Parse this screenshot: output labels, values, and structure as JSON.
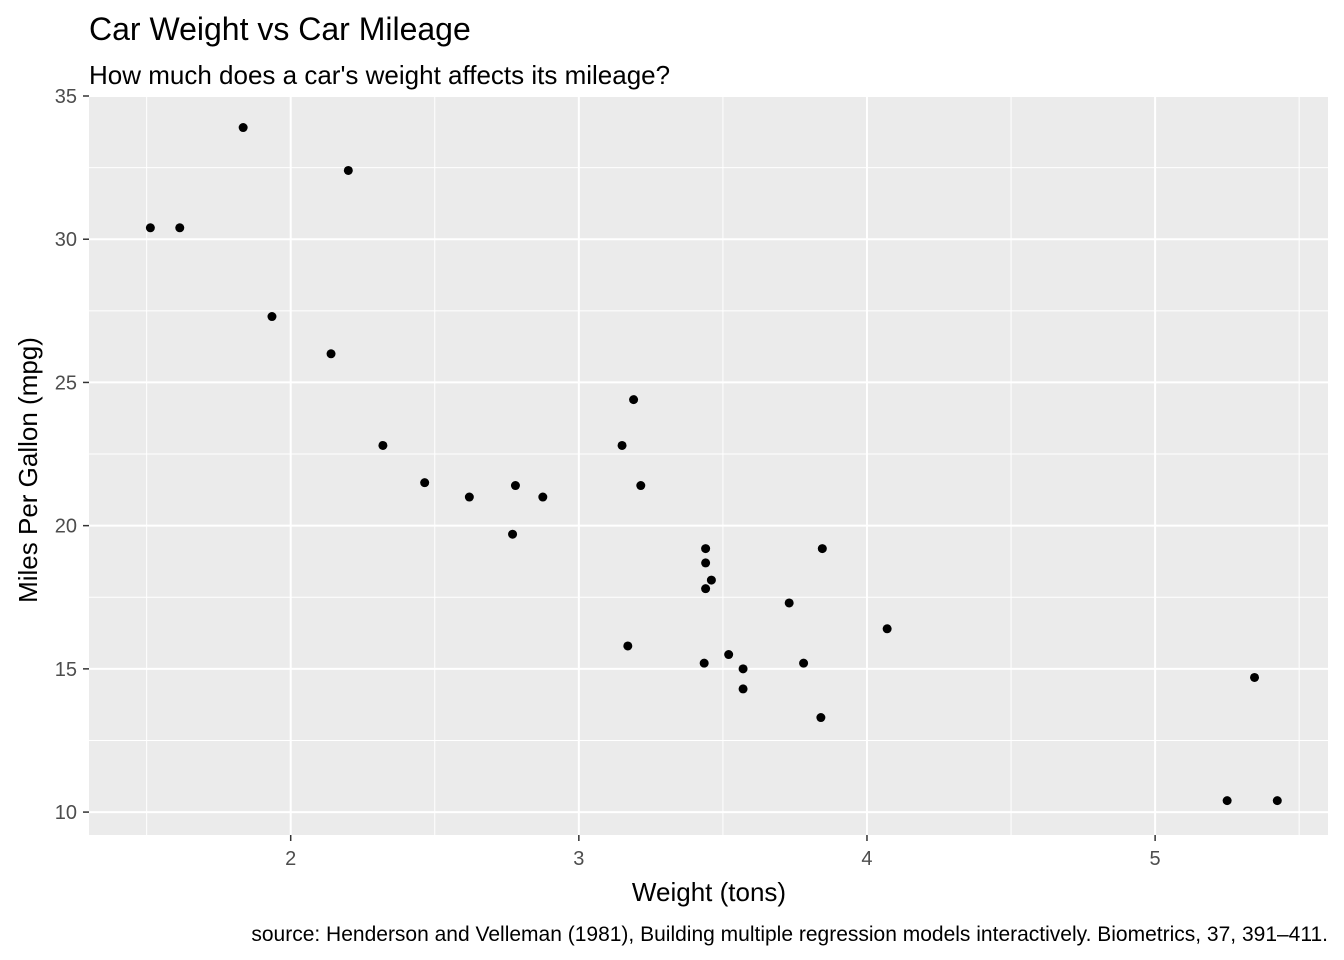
{
  "chart_data": {
    "type": "scatter",
    "title": "Car Weight vs Car Mileage",
    "subtitle": "How much does a car's weight affects its mileage?",
    "xlabel": "Weight (tons)",
    "ylabel": "Miles Per Gallon (mpg)",
    "caption": "source: Henderson and Velleman (1981), Building multiple regression models interactively. Biometrics, 37, 391–411.",
    "xlim": [
      1.3,
      5.6
    ],
    "ylim": [
      9.2,
      35.0
    ],
    "x_ticks": [
      2,
      3,
      4,
      5
    ],
    "x_tick_labels": [
      "2",
      "3",
      "4",
      "5"
    ],
    "y_ticks": [
      10,
      15,
      20,
      25,
      30,
      35
    ],
    "y_tick_labels": [
      "10",
      "15",
      "20",
      "25",
      "30",
      "35"
    ],
    "grid": true,
    "background": "#ebebeb",
    "grid_color": "#ffffff",
    "point_color": "#000000",
    "points": [
      {
        "x": 2.62,
        "y": 21.0
      },
      {
        "x": 2.875,
        "y": 21.0
      },
      {
        "x": 2.32,
        "y": 22.8
      },
      {
        "x": 3.215,
        "y": 21.4
      },
      {
        "x": 3.44,
        "y": 18.7
      },
      {
        "x": 3.46,
        "y": 18.1
      },
      {
        "x": 3.57,
        "y": 14.3
      },
      {
        "x": 3.19,
        "y": 24.4
      },
      {
        "x": 3.15,
        "y": 22.8
      },
      {
        "x": 3.44,
        "y": 19.2
      },
      {
        "x": 3.44,
        "y": 17.8
      },
      {
        "x": 4.07,
        "y": 16.4
      },
      {
        "x": 3.73,
        "y": 17.3
      },
      {
        "x": 3.78,
        "y": 15.2
      },
      {
        "x": 5.25,
        "y": 10.4
      },
      {
        "x": 5.424,
        "y": 10.4
      },
      {
        "x": 5.345,
        "y": 14.7
      },
      {
        "x": 2.2,
        "y": 32.4
      },
      {
        "x": 1.615,
        "y": 30.4
      },
      {
        "x": 1.835,
        "y": 33.9
      },
      {
        "x": 2.465,
        "y": 21.5
      },
      {
        "x": 3.52,
        "y": 15.5
      },
      {
        "x": 3.435,
        "y": 15.2
      },
      {
        "x": 3.84,
        "y": 13.3
      },
      {
        "x": 3.845,
        "y": 19.2
      },
      {
        "x": 1.935,
        "y": 27.3
      },
      {
        "x": 2.14,
        "y": 26.0
      },
      {
        "x": 1.513,
        "y": 30.4
      },
      {
        "x": 3.17,
        "y": 15.8
      },
      {
        "x": 2.77,
        "y": 19.7
      },
      {
        "x": 3.57,
        "y": 15.0
      },
      {
        "x": 2.78,
        "y": 21.4
      }
    ]
  }
}
